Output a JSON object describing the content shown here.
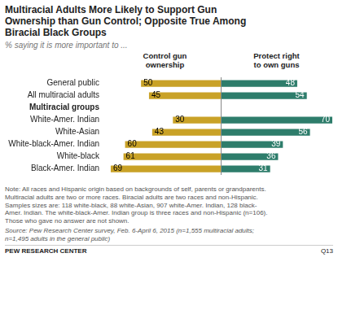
{
  "chart_data": {
    "type": "bar",
    "orientation": "horizontal",
    "title": "Multiracial Adults More Likely to Support Gun\nOwnership than Gun Control; Opposite True Among\nBiracial Black Groups",
    "subtitle": "% saying it is more important to ...",
    "categories": [
      "General public",
      "All multiracial adults",
      "Multiracial groups",
      "White-Amer. Indian",
      "White-Asian",
      "White-black-Amer. Indian",
      "White-black",
      "Black-Amer. Indian"
    ],
    "series": [
      {
        "name": "Control gun\nownership",
        "color": "#C9A227",
        "values": [
          50,
          45,
          null,
          30,
          43,
          60,
          61,
          69
        ]
      },
      {
        "name": "Protect right\nto own guns",
        "color": "#2E7D6B",
        "values": [
          48,
          54,
          null,
          70,
          56,
          39,
          36,
          31
        ]
      }
    ],
    "xlim": [
      0,
      70
    ],
    "data_labels": true,
    "tick_labels": "y",
    "grid": false,
    "annotations": [
      "Note: All races and Hispanic origin based on backgrounds of self, parents or grandparents.\nMultiracial adults are two or more races. Biracial adults are two races and non-Hispanic.\nSamples sizes are: 118 white-black, 88 white-Asian, 907 white-Amer. Indian, 128 black-\nAmer. Indian. The white-black-Amer. Indian group is three races and non-Hispanic (n=106).\nThose who gave no answer are not shown.",
      "Source: Pew Research Center survey, Feb. 6-April 6, 2015 (n=1,555 multiracial adults;\nn=1,495 adults in the general public)",
      "PEW RESEARCH CENTER",
      "Q13"
    ]
  }
}
